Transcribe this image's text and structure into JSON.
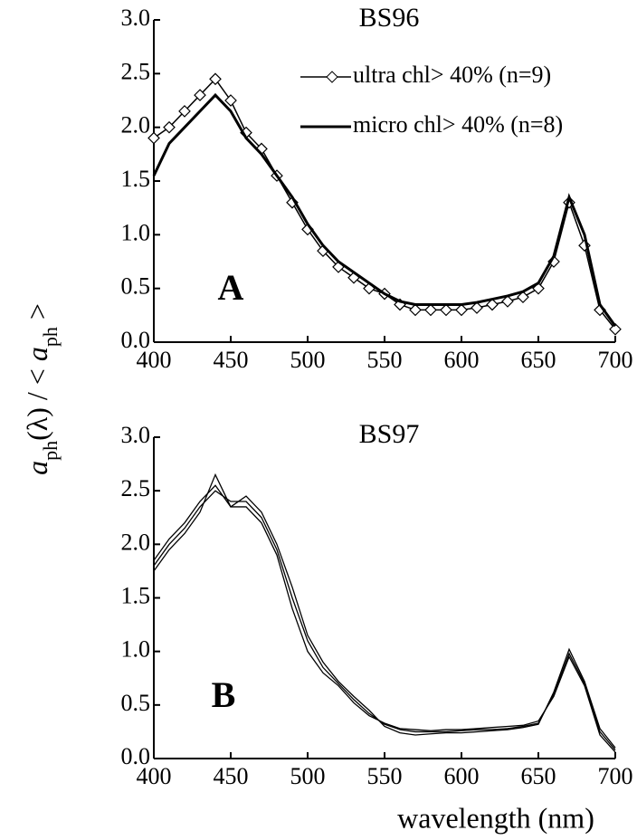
{
  "y_label": [
    "a",
    "ph",
    "(λ) / < ",
    "a",
    "ph",
    " >"
  ],
  "x_label": "wavelength (nm)",
  "chart_data": [
    {
      "type": "line",
      "title": "BS96",
      "annotation": "A",
      "x": [
        400,
        410,
        420,
        430,
        440,
        450,
        460,
        470,
        480,
        490,
        500,
        510,
        520,
        530,
        540,
        550,
        560,
        570,
        580,
        590,
        600,
        610,
        620,
        630,
        640,
        650,
        660,
        670,
        680,
        690,
        700
      ],
      "series": [
        {
          "name": "ultra chl> 40% (n=9)",
          "color": "#000000",
          "marker": "diamond",
          "values": [
            1.9,
            2.0,
            2.15,
            2.3,
            2.45,
            2.25,
            1.95,
            1.8,
            1.55,
            1.3,
            1.05,
            0.85,
            0.7,
            0.6,
            0.5,
            0.45,
            0.35,
            0.3,
            0.3,
            0.3,
            0.3,
            0.32,
            0.35,
            0.38,
            0.42,
            0.5,
            0.75,
            1.3,
            0.9,
            0.3,
            0.12
          ]
        },
        {
          "name": "micro chl> 40% (n=8)",
          "color": "#000000",
          "marker": "none",
          "values": [
            1.55,
            1.85,
            2.0,
            2.15,
            2.3,
            2.15,
            1.9,
            1.75,
            1.55,
            1.35,
            1.1,
            0.9,
            0.75,
            0.65,
            0.55,
            0.45,
            0.38,
            0.35,
            0.35,
            0.35,
            0.35,
            0.37,
            0.4,
            0.43,
            0.47,
            0.55,
            0.8,
            1.35,
            1.0,
            0.35,
            0.15
          ]
        }
      ],
      "xlim": [
        400,
        700
      ],
      "xticks": [
        400,
        450,
        500,
        550,
        600,
        650,
        700
      ],
      "ylim": [
        0,
        3
      ],
      "yticks": [
        {
          "value": 0,
          "label": "0.0"
        },
        0.5,
        {
          "value": 1,
          "label": "1.0"
        },
        1.5,
        {
          "value": 2,
          "label": "2.0"
        },
        2.5,
        {
          "value": 3,
          "label": "3.0"
        }
      ],
      "legend": "top-right"
    },
    {
      "type": "line",
      "title": "BS97",
      "annotation": "B",
      "x": [
        400,
        410,
        420,
        430,
        440,
        450,
        460,
        470,
        480,
        490,
        500,
        510,
        520,
        530,
        540,
        550,
        560,
        570,
        580,
        590,
        600,
        610,
        620,
        630,
        640,
        650,
        660,
        670,
        680,
        690,
        700
      ],
      "series": [
        {
          "color": "#000000",
          "marker": "none",
          "values": [
            1.8,
            2.0,
            2.15,
            2.35,
            2.5,
            2.4,
            2.4,
            2.25,
            1.95,
            1.5,
            1.1,
            0.85,
            0.7,
            0.55,
            0.42,
            0.32,
            0.27,
            0.25,
            0.25,
            0.25,
            0.26,
            0.27,
            0.27,
            0.28,
            0.3,
            0.33,
            0.6,
            0.98,
            0.7,
            0.25,
            0.08
          ]
        },
        {
          "color": "#000000",
          "marker": "none",
          "values": [
            1.85,
            2.05,
            2.2,
            2.4,
            2.55,
            2.35,
            2.45,
            2.3,
            2.0,
            1.6,
            1.15,
            0.9,
            0.72,
            0.58,
            0.45,
            0.3,
            0.24,
            0.22,
            0.23,
            0.24,
            0.24,
            0.25,
            0.26,
            0.27,
            0.29,
            0.32,
            0.62,
            1.02,
            0.72,
            0.28,
            0.1
          ]
        },
        {
          "color": "#000000",
          "marker": "none",
          "values": [
            1.75,
            1.95,
            2.1,
            2.3,
            2.65,
            2.35,
            2.35,
            2.2,
            1.9,
            1.4,
            1.0,
            0.8,
            0.68,
            0.52,
            0.4,
            0.33,
            0.28,
            0.27,
            0.26,
            0.27,
            0.27,
            0.28,
            0.29,
            0.3,
            0.31,
            0.35,
            0.58,
            0.95,
            0.68,
            0.22,
            0.06
          ]
        }
      ],
      "xlim": [
        400,
        700
      ],
      "xticks": [
        400,
        450,
        500,
        550,
        600,
        650,
        700
      ],
      "ylim": [
        0,
        3
      ],
      "yticks": [
        {
          "value": 0,
          "label": "0.0"
        },
        0.5,
        {
          "value": 1,
          "label": "1.0"
        },
        1.5,
        {
          "value": 2,
          "label": "2.0"
        },
        2.5,
        {
          "value": 3,
          "label": "3.0"
        }
      ]
    }
  ]
}
